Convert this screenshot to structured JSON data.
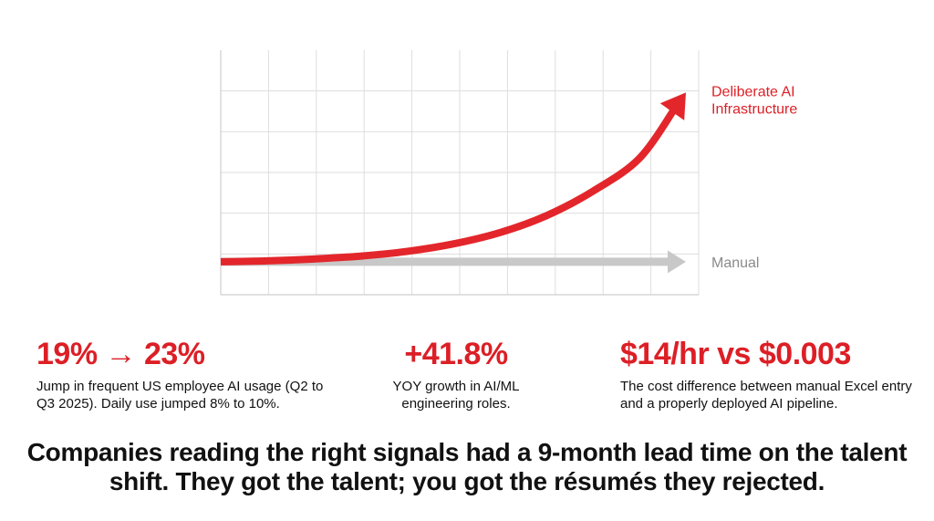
{
  "chart_data": {
    "type": "line",
    "title": "",
    "xlabel": "",
    "ylabel": "",
    "grid": true,
    "x": [
      0,
      1,
      2,
      3,
      4,
      5,
      6,
      7,
      8,
      9,
      10
    ],
    "series": [
      {
        "name": "Deliberate AI Infrastructure",
        "label_lines": [
          "Deliberate AI",
          "Infrastructure"
        ],
        "color": "#e3262b",
        "values": [
          1.0,
          1.02,
          1.06,
          1.12,
          1.22,
          1.38,
          1.62,
          1.98,
          2.5,
          3.2,
          4.6
        ]
      },
      {
        "name": "Manual",
        "label_lines": [
          "Manual"
        ],
        "color": "#c8c8c8",
        "values": [
          1.0,
          1.0,
          1.0,
          1.0,
          1.0,
          1.0,
          1.0,
          1.0,
          1.0,
          1.0,
          1.0
        ]
      }
    ],
    "xlim": [
      0,
      10
    ],
    "ylim": [
      0.3,
      5.5
    ]
  },
  "stats": [
    {
      "value": "19% → 23%",
      "description": "Jump in frequent US employee AI usage (Q2 to Q3 2025). Daily use jumped 8% to 10%."
    },
    {
      "value": "+41.8%",
      "description": "YOY growth in AI/ML engineering roles."
    },
    {
      "value": "$14/hr vs $0.003",
      "description": "The cost difference between manual Excel entry and a properly deployed AI pipeline."
    }
  ],
  "takeaway": "Companies reading the right signals had a 9-month lead time on the talent shift. They got the talent; you got the résumés they rejected.",
  "colors": {
    "accent": "#dc1f26",
    "muted_series": "#c8c8c8",
    "grid": "#dedede",
    "text": "#111111"
  }
}
